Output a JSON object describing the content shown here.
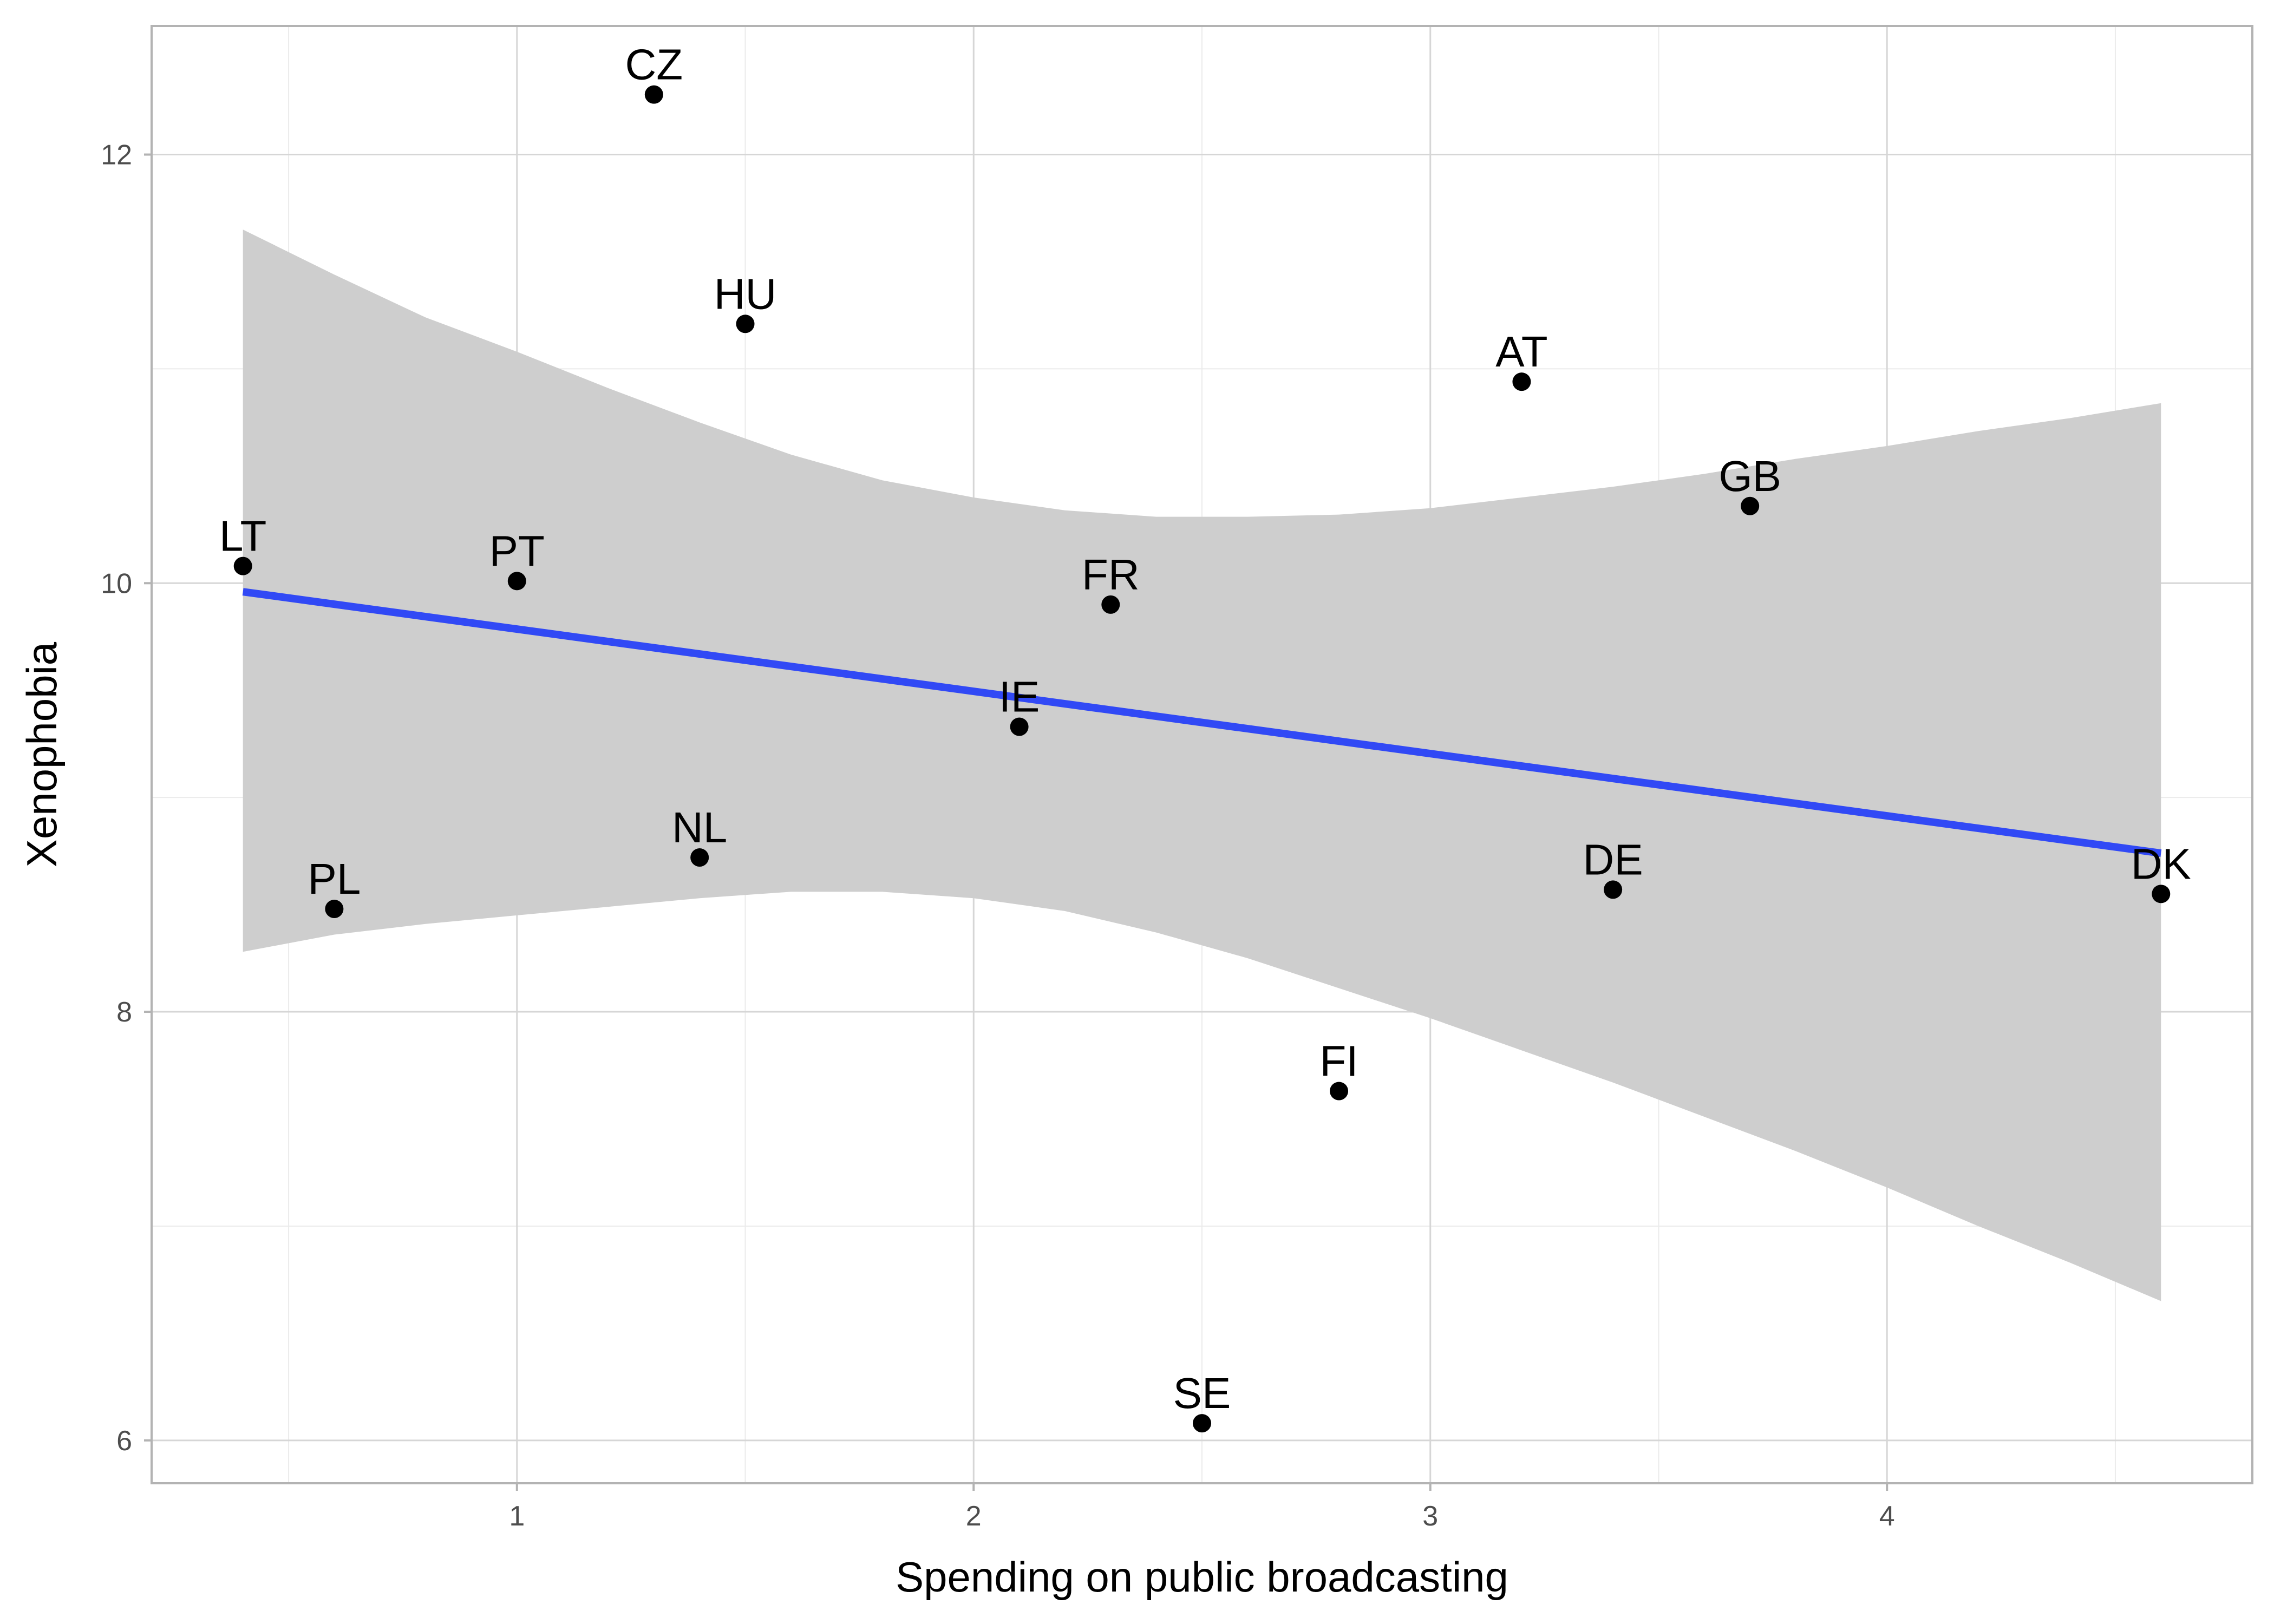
{
  "chart_data": {
    "type": "scatter",
    "title": "",
    "xlabel": "Spending on public broadcasting",
    "ylabel": "Xenophobia",
    "xlim": [
      0.2,
      4.8
    ],
    "ylim": [
      5.8,
      12.6
    ],
    "x_ticks": [
      1,
      2,
      3,
      4
    ],
    "y_ticks": [
      6,
      8,
      10,
      12
    ],
    "x_tick_labels": [
      "1",
      "2",
      "3",
      "4"
    ],
    "y_tick_labels": [
      "6",
      "8",
      "10",
      "12"
    ],
    "grid": true,
    "legend": "none",
    "points": [
      {
        "label": "CZ",
        "x": 1.3,
        "y": 12.28
      },
      {
        "label": "HU",
        "x": 1.5,
        "y": 11.21
      },
      {
        "label": "AT",
        "x": 3.2,
        "y": 10.94
      },
      {
        "label": "GB",
        "x": 3.7,
        "y": 10.36
      },
      {
        "label": "LT",
        "x": 0.4,
        "y": 10.08
      },
      {
        "label": "PT",
        "x": 1.0,
        "y": 10.01
      },
      {
        "label": "FR",
        "x": 2.3,
        "y": 9.9
      },
      {
        "label": "IE",
        "x": 2.1,
        "y": 9.33
      },
      {
        "label": "NL",
        "x": 1.4,
        "y": 8.72
      },
      {
        "label": "DE",
        "x": 3.4,
        "y": 8.57
      },
      {
        "label": "DK",
        "x": 4.6,
        "y": 8.55
      },
      {
        "label": "PL",
        "x": 0.6,
        "y": 8.48
      },
      {
        "label": "FI",
        "x": 2.8,
        "y": 7.63
      },
      {
        "label": "SE",
        "x": 2.5,
        "y": 6.08
      }
    ],
    "trend_line": {
      "x": [
        0.4,
        4.6
      ],
      "y": [
        9.96,
        8.74
      ],
      "color": "#3149f5"
    },
    "confidence_band": {
      "x": [
        0.4,
        0.6,
        0.8,
        1.0,
        1.2,
        1.4,
        1.6,
        1.8,
        2.0,
        2.2,
        2.4,
        2.6,
        2.8,
        3.0,
        3.2,
        3.4,
        3.6,
        3.8,
        4.0,
        4.2,
        4.4,
        4.6
      ],
      "upper": [
        11.65,
        11.44,
        11.24,
        11.08,
        10.91,
        10.75,
        10.6,
        10.48,
        10.4,
        10.34,
        10.31,
        10.31,
        10.32,
        10.35,
        10.4,
        10.45,
        10.51,
        10.58,
        10.64,
        10.71,
        10.77,
        10.84
      ],
      "lower": [
        8.28,
        8.36,
        8.41,
        8.45,
        8.49,
        8.53,
        8.56,
        8.56,
        8.53,
        8.47,
        8.37,
        8.25,
        8.11,
        7.97,
        7.82,
        7.67,
        7.51,
        7.35,
        7.18,
        7.0,
        6.83,
        6.65
      ],
      "color": "#cecece"
    }
  }
}
